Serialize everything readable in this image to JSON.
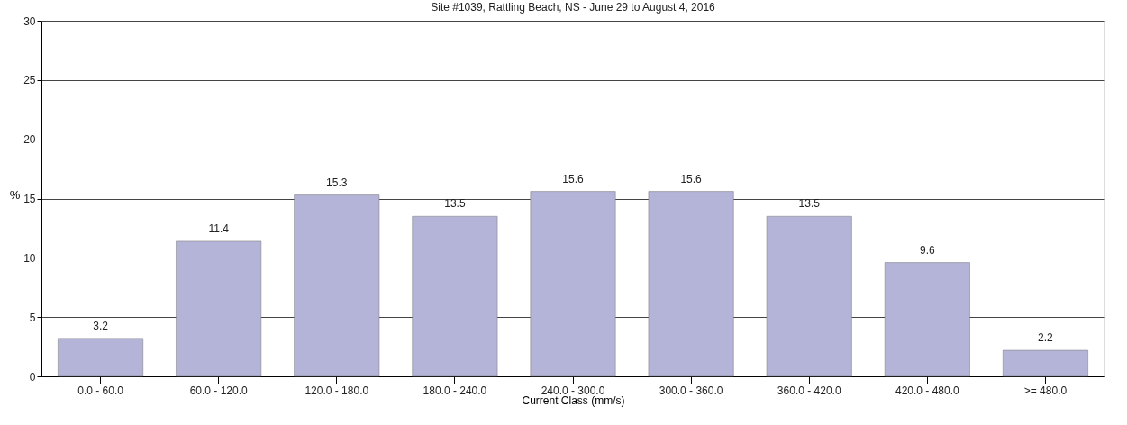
{
  "chart_data": {
    "type": "bar",
    "title": "Site #1039, Rattling Beach, NS - June 29 to August 4, 2016",
    "xlabel": "Current Class (mm/s)",
    "ylabel": "%",
    "categories": [
      "0.0 - 60.0",
      "60.0 - 120.0",
      "120.0 - 180.0",
      "180.0 - 240.0",
      "240.0 - 300.0",
      "300.0 - 360.0",
      "360.0 - 420.0",
      "420.0 - 480.0",
      ">= 480.0"
    ],
    "values": [
      3.2,
      11.4,
      15.3,
      13.5,
      15.6,
      15.6,
      13.5,
      9.6,
      2.2
    ],
    "color": "#b4b4d8",
    "ylim": [
      0,
      30
    ],
    "yticks": [
      0,
      5,
      10,
      15,
      20,
      25,
      30
    ],
    "grid": "y",
    "data_labels": true
  }
}
